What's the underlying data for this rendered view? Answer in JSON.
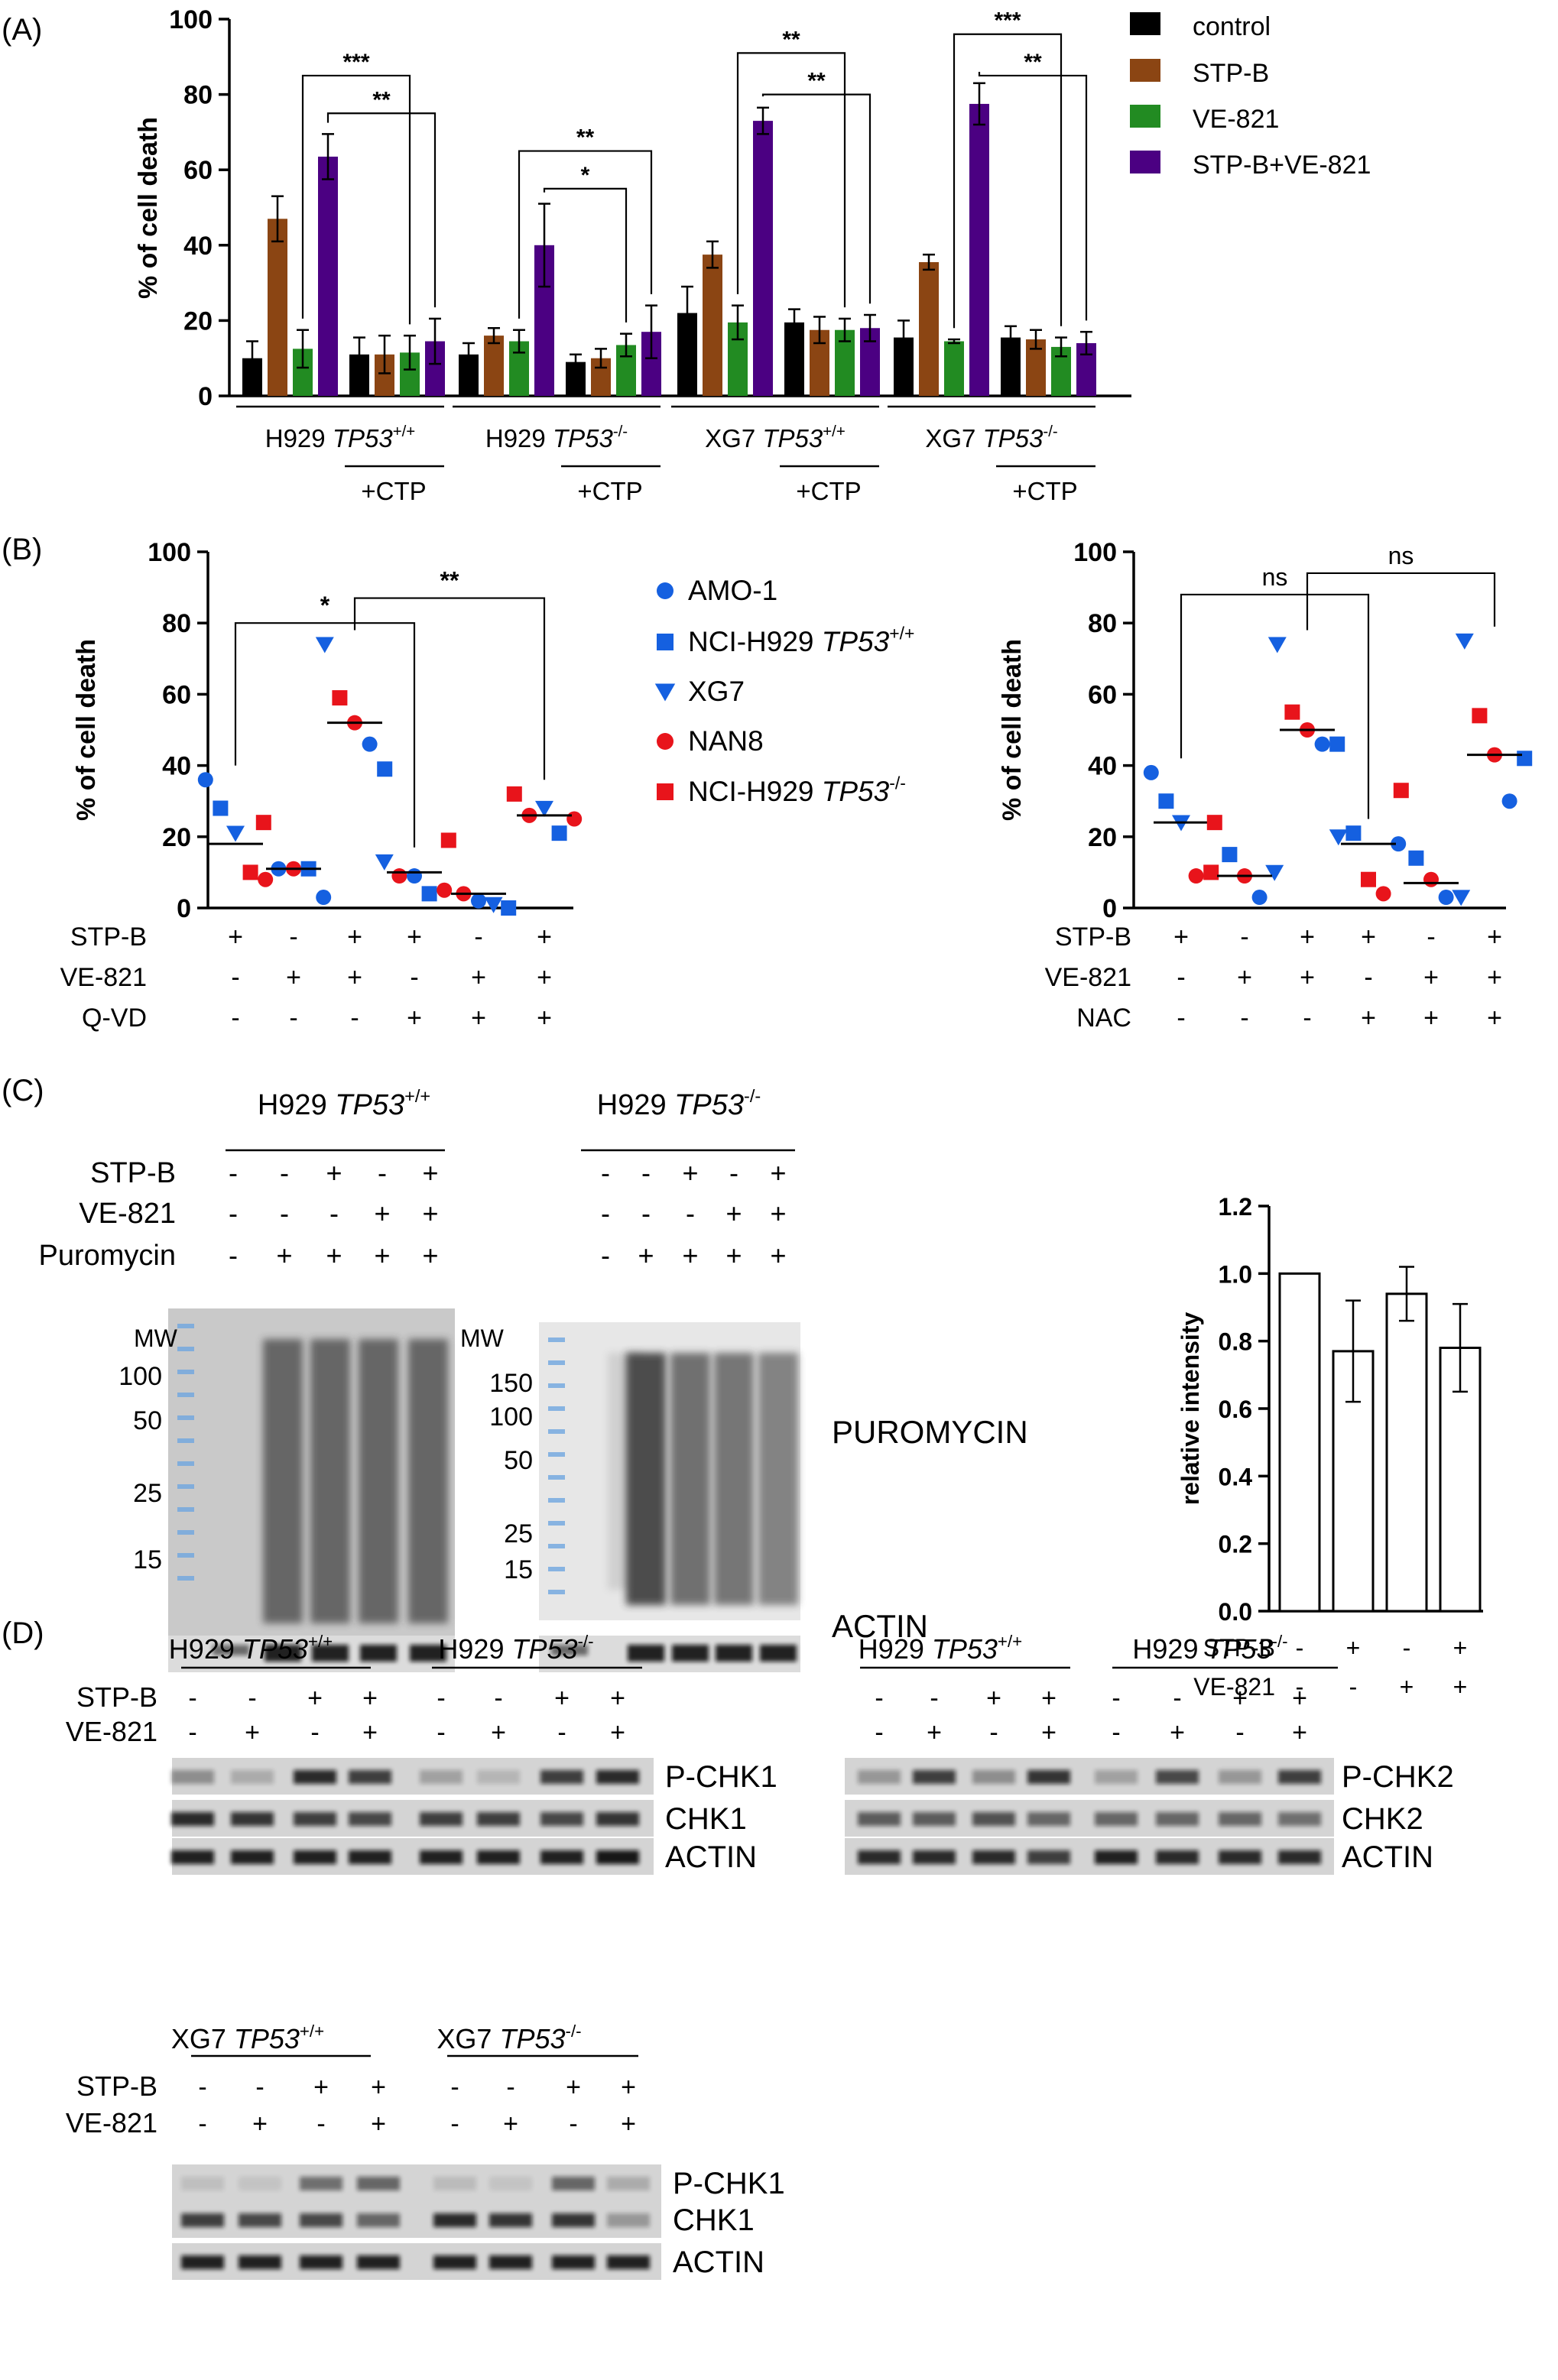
{
  "panel_labels": {
    "a": "(A)",
    "b": "(B)",
    "c": "(C)",
    "d": "(D)"
  },
  "colors": {
    "control": "#000000",
    "stp_b": "#8B4513",
    "ve821": "#228B22",
    "combo": "#4B0082",
    "blue": "#1560E0",
    "red": "#E8141B",
    "blot_bg": "#d8d8d8"
  },
  "chart_data": [
    {
      "id": "A",
      "type": "bar",
      "ylabel": "% of cell death",
      "ylim": [
        0,
        100
      ],
      "yticks": [
        0,
        20,
        40,
        60,
        80,
        100
      ],
      "legend": {
        "position": "top-right",
        "labels": [
          "control",
          "STP-B",
          "VE-821",
          "STP-B+VE-821"
        ]
      },
      "groups": [
        {
          "label_pre": "H929 ",
          "label_gene": "TP53",
          "label_sup": "+/+",
          "ctp": "+CTP",
          "values": [
            10,
            47,
            12.5,
            63.5
          ],
          "errors": [
            4.5,
            6,
            5,
            6
          ],
          "ctp_values": [
            11,
            11,
            11.5,
            14.5
          ],
          "ctp_errors": [
            4.5,
            5,
            4.5,
            6
          ]
        },
        {
          "label_pre": "H929 ",
          "label_gene": "TP53",
          "label_sup": "-/-",
          "ctp": "+CTP",
          "values": [
            11,
            16,
            14.5,
            40
          ],
          "errors": [
            3,
            2,
            3,
            11
          ],
          "ctp_values": [
            9,
            10,
            13.5,
            17
          ],
          "ctp_errors": [
            2,
            2.5,
            3,
            7
          ]
        },
        {
          "label_pre": "XG7 ",
          "label_gene": "TP53",
          "label_sup": "+/+",
          "ctp": "+CTP",
          "values": [
            22,
            37.5,
            19.5,
            73
          ],
          "errors": [
            7,
            3.5,
            4.5,
            3.5
          ],
          "ctp_values": [
            19.5,
            17.5,
            17.5,
            18
          ],
          "ctp_errors": [
            3.5,
            3.5,
            3,
            3.5
          ]
        },
        {
          "label_pre": "XG7 ",
          "label_gene": "TP53",
          "label_sup": "-/-",
          "ctp": "+CTP",
          "values": [
            15.5,
            35.5,
            14.5,
            77.5
          ],
          "errors": [
            4.5,
            2,
            0.5,
            5.5
          ],
          "ctp_values": [
            15.5,
            15,
            13,
            14
          ],
          "ctp_errors": [
            3,
            2.5,
            2.5,
            3
          ]
        }
      ],
      "significance": [
        {
          "group": 0,
          "pair": "b3-c3",
          "label": "**",
          "y": 75
        },
        {
          "group": 0,
          "pair": "b2-c2",
          "label": "***",
          "y": 85
        },
        {
          "group": 1,
          "pair": "b3-c2",
          "label": "*",
          "y": 55
        },
        {
          "group": 1,
          "pair": "b2-c3",
          "label": "**",
          "y": 65
        },
        {
          "group": 2,
          "pair": "b3-c3",
          "label": "**",
          "y": 80
        },
        {
          "group": 2,
          "pair": "b2-c2",
          "label": "**",
          "y": 91
        },
        {
          "group": 3,
          "pair": "b3-c3",
          "label": "**",
          "y": 85
        },
        {
          "group": 3,
          "pair": "b2-c2",
          "label": "***",
          "y": 96
        }
      ]
    },
    {
      "id": "B-left",
      "type": "scatter",
      "ylabel": "% of cell death",
      "ylim": [
        0,
        100
      ],
      "yticks": [
        0,
        20,
        40,
        60,
        80,
        100
      ],
      "treatment_rows": [
        {
          "label": "STP-B",
          "values": [
            "+",
            "-",
            "+",
            "+",
            "-",
            "+"
          ]
        },
        {
          "label": "VE-821",
          "values": [
            "-",
            "+",
            "+",
            "-",
            "+",
            "+"
          ]
        },
        {
          "label": "Q-VD",
          "values": [
            "-",
            "-",
            "-",
            "+",
            "+",
            "+"
          ]
        }
      ],
      "medians": [
        18,
        11,
        52,
        10,
        4,
        26
      ],
      "points": [
        [
          {
            "s": "circle",
            "c": "blue",
            "v": 36
          },
          {
            "s": "square",
            "c": "blue",
            "v": 28
          },
          {
            "s": "triangle",
            "c": "blue",
            "v": 21
          },
          {
            "s": "square",
            "c": "red",
            "v": 10
          },
          {
            "s": "circle",
            "c": "red",
            "v": 8
          }
        ],
        [
          {
            "s": "square",
            "c": "red",
            "v": 24
          },
          {
            "s": "circle",
            "c": "blue",
            "v": 11
          },
          {
            "s": "circle",
            "c": "red",
            "v": 11
          },
          {
            "s": "square",
            "c": "blue",
            "v": 11
          },
          {
            "s": "circle",
            "c": "blue",
            "v": 3
          }
        ],
        [
          {
            "s": "triangle",
            "c": "blue",
            "v": 74
          },
          {
            "s": "square",
            "c": "red",
            "v": 59
          },
          {
            "s": "circle",
            "c": "red",
            "v": 52
          },
          {
            "s": "circle",
            "c": "blue",
            "v": 46
          },
          {
            "s": "square",
            "c": "blue",
            "v": 39
          }
        ],
        [
          {
            "s": "triangle",
            "c": "blue",
            "v": 13
          },
          {
            "s": "circle",
            "c": "red",
            "v": 9
          },
          {
            "s": "circle",
            "c": "blue",
            "v": 9
          },
          {
            "s": "square",
            "c": "blue",
            "v": 4
          },
          {
            "s": "circle",
            "c": "red",
            "v": 5
          }
        ],
        [
          {
            "s": "square",
            "c": "red",
            "v": 19
          },
          {
            "s": "circle",
            "c": "red",
            "v": 4
          },
          {
            "s": "circle",
            "c": "blue",
            "v": 2
          },
          {
            "s": "triangle",
            "c": "blue",
            "v": 1
          },
          {
            "s": "square",
            "c": "blue",
            "v": 0
          }
        ],
        [
          {
            "s": "square",
            "c": "red",
            "v": 32
          },
          {
            "s": "circle",
            "c": "red",
            "v": 26
          },
          {
            "s": "triangle",
            "c": "blue",
            "v": 28
          },
          {
            "s": "square",
            "c": "blue",
            "v": 21
          },
          {
            "s": "circle",
            "c": "red",
            "v": 25
          }
        ]
      ],
      "significance": [
        {
          "from": 0,
          "to": 3,
          "label": "*",
          "y": 80
        },
        {
          "from": 2,
          "to": 5,
          "label": "**",
          "y": 87
        }
      ]
    },
    {
      "id": "B-right",
      "type": "scatter",
      "ylabel": "% of cell death",
      "ylim": [
        0,
        100
      ],
      "yticks": [
        0,
        20,
        40,
        60,
        80,
        100
      ],
      "treatment_rows": [
        {
          "label": "STP-B",
          "values": [
            "+",
            "-",
            "+",
            "+",
            "-",
            "+"
          ]
        },
        {
          "label": "VE-821",
          "values": [
            "-",
            "+",
            "+",
            "-",
            "+",
            "+"
          ]
        },
        {
          "label": "NAC",
          "values": [
            "-",
            "-",
            "-",
            "+",
            "+",
            "+"
          ]
        }
      ],
      "medians": [
        24,
        9,
        50,
        18,
        7,
        43
      ],
      "points": [
        [
          {
            "s": "circle",
            "c": "blue",
            "v": 38
          },
          {
            "s": "square",
            "c": "blue",
            "v": 30
          },
          {
            "s": "triangle",
            "c": "blue",
            "v": 24
          },
          {
            "s": "circle",
            "c": "red",
            "v": 9
          },
          {
            "s": "square",
            "c": "red",
            "v": 10
          }
        ],
        [
          {
            "s": "square",
            "c": "red",
            "v": 24
          },
          {
            "s": "square",
            "c": "blue",
            "v": 15
          },
          {
            "s": "circle",
            "c": "red",
            "v": 9
          },
          {
            "s": "circle",
            "c": "blue",
            "v": 3
          },
          {
            "s": "triangle",
            "c": "blue",
            "v": 10
          }
        ],
        [
          {
            "s": "triangle",
            "c": "blue",
            "v": 74
          },
          {
            "s": "square",
            "c": "red",
            "v": 55
          },
          {
            "s": "circle",
            "c": "red",
            "v": 50
          },
          {
            "s": "circle",
            "c": "blue",
            "v": 46
          },
          {
            "s": "square",
            "c": "blue",
            "v": 46
          }
        ],
        [
          {
            "s": "triangle",
            "c": "blue",
            "v": 20
          },
          {
            "s": "square",
            "c": "blue",
            "v": 21
          },
          {
            "s": "square",
            "c": "red",
            "v": 8
          },
          {
            "s": "circle",
            "c": "red",
            "v": 4
          },
          {
            "s": "circle",
            "c": "blue",
            "v": 18
          }
        ],
        [
          {
            "s": "square",
            "c": "red",
            "v": 33
          },
          {
            "s": "square",
            "c": "blue",
            "v": 14
          },
          {
            "s": "circle",
            "c": "red",
            "v": 8
          },
          {
            "s": "circle",
            "c": "blue",
            "v": 3
          },
          {
            "s": "triangle",
            "c": "blue",
            "v": 3
          }
        ],
        [
          {
            "s": "triangle",
            "c": "blue",
            "v": 75
          },
          {
            "s": "square",
            "c": "red",
            "v": 54
          },
          {
            "s": "circle",
            "c": "red",
            "v": 43
          },
          {
            "s": "circle",
            "c": "blue",
            "v": 30
          },
          {
            "s": "square",
            "c": "blue",
            "v": 42
          }
        ]
      ],
      "significance": [
        {
          "from": 0,
          "to": 3,
          "label": "ns",
          "y": 88
        },
        {
          "from": 2,
          "to": 5,
          "label": "ns",
          "y": 94
        }
      ]
    },
    {
      "id": "C-right",
      "type": "bar",
      "ylabel": "relative intensity",
      "ylim": [
        0,
        1.2
      ],
      "yticks": [
        "0.0",
        "0.2",
        "0.4",
        "0.6",
        "0.8",
        "1.0",
        "1.2"
      ],
      "values": [
        1.0,
        0.77,
        0.94,
        0.78
      ],
      "errors": [
        0,
        0.15,
        0.08,
        0.13
      ],
      "treatment_rows": [
        {
          "label": "STP-B",
          "values": [
            "-",
            "+",
            "-",
            "+"
          ]
        },
        {
          "label": "VE-821",
          "values": [
            "-",
            "-",
            "+",
            "+"
          ]
        }
      ]
    }
  ],
  "legend_b": [
    {
      "shape": "circle",
      "color": "blue",
      "label_pre": "AMO-1",
      "label_gene": "",
      "label_sup": ""
    },
    {
      "shape": "square",
      "color": "blue",
      "label_pre": "NCI-H929 ",
      "label_gene": "TP53",
      "label_sup": "+/+"
    },
    {
      "shape": "triangle",
      "color": "blue",
      "label_pre": "XG7",
      "label_gene": "",
      "label_sup": ""
    },
    {
      "shape": "circle",
      "color": "red",
      "label_pre": "NAN8",
      "label_gene": "",
      "label_sup": ""
    },
    {
      "shape": "square",
      "color": "red",
      "label_pre": "NCI-H929 ",
      "label_gene": "TP53",
      "label_sup": "-/-"
    }
  ],
  "panel_c": {
    "blots": [
      {
        "title_pre": "H929 ",
        "title_gene": "TP53",
        "title_sup": "+/+",
        "rows": [
          {
            "label": "STP-B",
            "values": [
              "-",
              "-",
              "+",
              "-",
              "+"
            ]
          },
          {
            "label": "VE-821",
            "values": [
              "-",
              "-",
              "-",
              "+",
              "+"
            ]
          },
          {
            "label": "Puromycin",
            "values": [
              "-",
              "+",
              "+",
              "+",
              "+"
            ]
          }
        ],
        "mw_title": "MW",
        "mw": [
          "100",
          "50",
          "25",
          "15"
        ]
      },
      {
        "title_pre": "H929 ",
        "title_gene": "TP53",
        "title_sup": "-/-",
        "rows": [
          {
            "label": "",
            "values": [
              "-",
              "-",
              "+",
              "-",
              "+"
            ]
          },
          {
            "label": "",
            "values": [
              "-",
              "-",
              "-",
              "+",
              "+"
            ]
          },
          {
            "label": "",
            "values": [
              "-",
              "+",
              "+",
              "+",
              "+"
            ]
          }
        ],
        "mw_title": "MW",
        "mw": [
          "150",
          "100",
          "50",
          "25",
          "15"
        ]
      }
    ],
    "labels": {
      "puromycin": "PUROMYCIN",
      "actin": "ACTIN"
    }
  },
  "panel_d": [
    {
      "cells": [
        {
          "pre": "H929 ",
          "gene": "TP53",
          "sup": "+/+"
        },
        {
          "pre": "H929 ",
          "gene": "TP53",
          "sup": "-/-"
        }
      ],
      "rows": [
        {
          "label": "STP-B",
          "values": [
            "-",
            "-",
            "+",
            "+",
            "-",
            "-",
            "+",
            "+"
          ]
        },
        {
          "label": "VE-821",
          "values": [
            "-",
            "+",
            "-",
            "+",
            "-",
            "+",
            "-",
            "+"
          ]
        }
      ],
      "bands": [
        "P-CHK1",
        "CHK1",
        "ACTIN"
      ]
    },
    {
      "cells": [
        {
          "pre": "H929 ",
          "gene": "TP53",
          "sup": "+/+"
        },
        {
          "pre": "H929 ",
          "gene": "TP53",
          "sup": "-/-"
        }
      ],
      "rows": [
        {
          "label": "",
          "values": [
            "-",
            "-",
            "+",
            "+",
            "-",
            "-",
            "+",
            "+"
          ]
        },
        {
          "label": "",
          "values": [
            "-",
            "+",
            "-",
            "+",
            "-",
            "+",
            "-",
            "+"
          ]
        }
      ],
      "bands": [
        "P-CHK2",
        "CHK2",
        "ACTIN"
      ]
    },
    {
      "cells": [
        {
          "pre": "XG7 ",
          "gene": "TP53",
          "sup": "+/+"
        },
        {
          "pre": "XG7 ",
          "gene": "TP53",
          "sup": "-/-"
        }
      ],
      "rows": [
        {
          "label": "STP-B",
          "values": [
            "-",
            "-",
            "+",
            "+",
            "-",
            "-",
            "+",
            "+"
          ]
        },
        {
          "label": "VE-821",
          "values": [
            "-",
            "+",
            "-",
            "+",
            "-",
            "+",
            "-",
            "+"
          ]
        }
      ],
      "bands": [
        "P-CHK1",
        "CHK1",
        "ACTIN"
      ]
    }
  ]
}
